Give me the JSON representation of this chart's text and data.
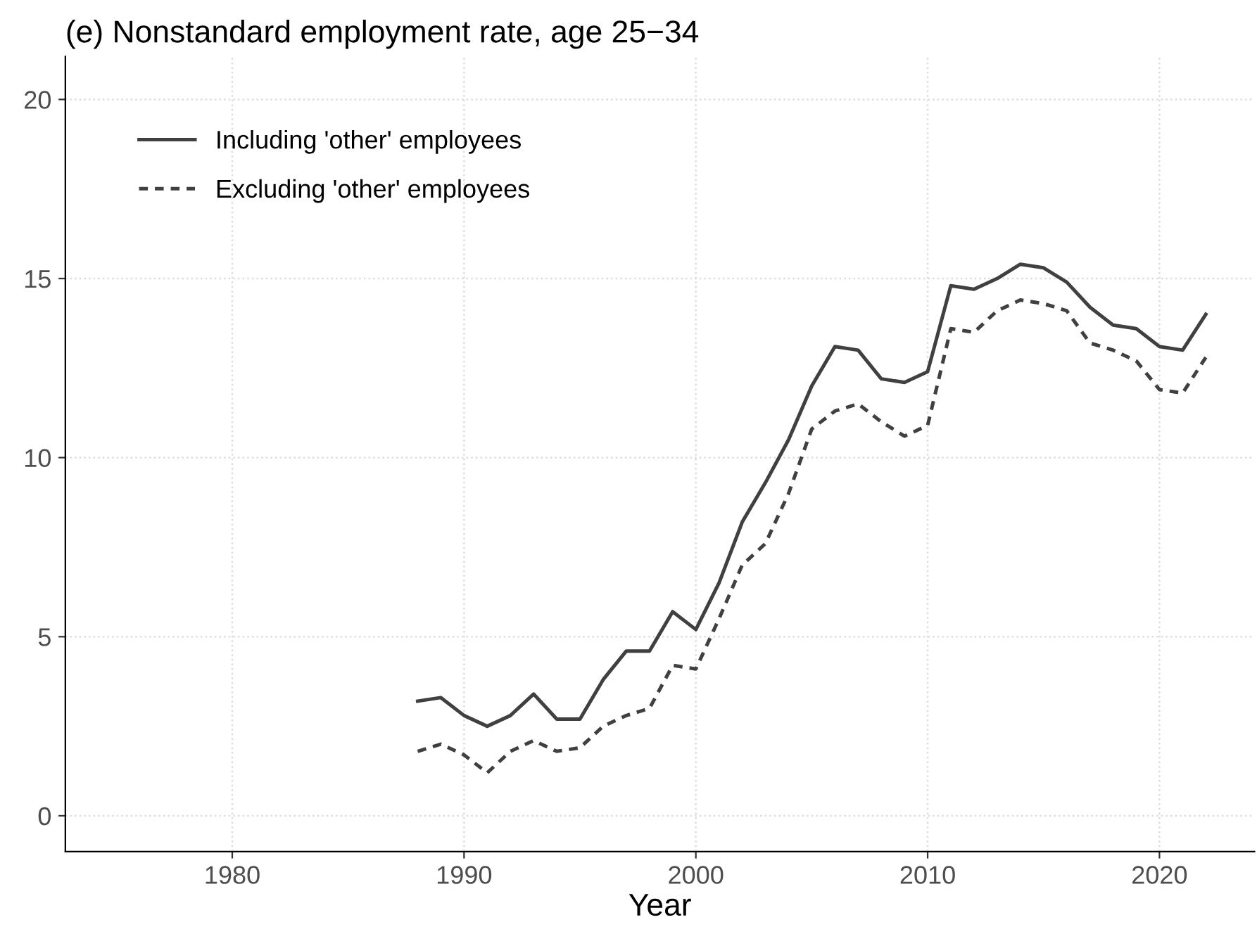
{
  "chart_data": {
    "type": "line",
    "title": "(e) Nonstandard employment rate, age 25−34",
    "xlabel": "Year",
    "x": [
      1988,
      1989,
      1990,
      1991,
      1992,
      1993,
      1994,
      1995,
      1996,
      1997,
      1998,
      1999,
      2000,
      2001,
      2002,
      2003,
      2004,
      2005,
      2006,
      2007,
      2008,
      2009,
      2010,
      2011,
      2012,
      2013,
      2014,
      2015,
      2016,
      2017,
      2018,
      2019,
      2020,
      2021,
      2022
    ],
    "series": [
      {
        "name": "Including 'other' employees",
        "color": "#404040",
        "line_style": "solid",
        "values": [
          3.2,
          3.3,
          2.8,
          2.5,
          2.8,
          3.4,
          2.7,
          2.7,
          3.8,
          4.6,
          4.6,
          5.7,
          5.2,
          6.5,
          8.2,
          9.3,
          10.5,
          12.0,
          13.1,
          13.0,
          12.2,
          12.1,
          12.4,
          14.8,
          14.7,
          15.0,
          15.4,
          15.3,
          14.9,
          14.2,
          13.7,
          13.6,
          13.1,
          13.0,
          14.0
        ]
      },
      {
        "name": "Excluding 'other' employees",
        "color": "#404040",
        "line_style": "dashed",
        "values": [
          1.8,
          2.0,
          1.7,
          1.2,
          1.8,
          2.1,
          1.8,
          1.9,
          2.5,
          2.8,
          3.0,
          4.2,
          4.1,
          5.5,
          7.0,
          7.6,
          9.0,
          10.8,
          11.3,
          11.5,
          11.0,
          10.6,
          10.9,
          13.6,
          13.5,
          14.1,
          14.4,
          14.3,
          14.1,
          13.2,
          13.0,
          12.7,
          11.9,
          11.8,
          12.8
        ]
      }
    ],
    "xlim": [
      1972.8,
      2024.1
    ],
    "xticks": [
      1980,
      1990,
      2000,
      2010,
      2020
    ],
    "ylim": [
      -1,
      21.2
    ],
    "yticks": [
      0,
      5,
      10,
      15,
      20
    ],
    "grid": true,
    "legend": "top left",
    "marker": "none"
  }
}
